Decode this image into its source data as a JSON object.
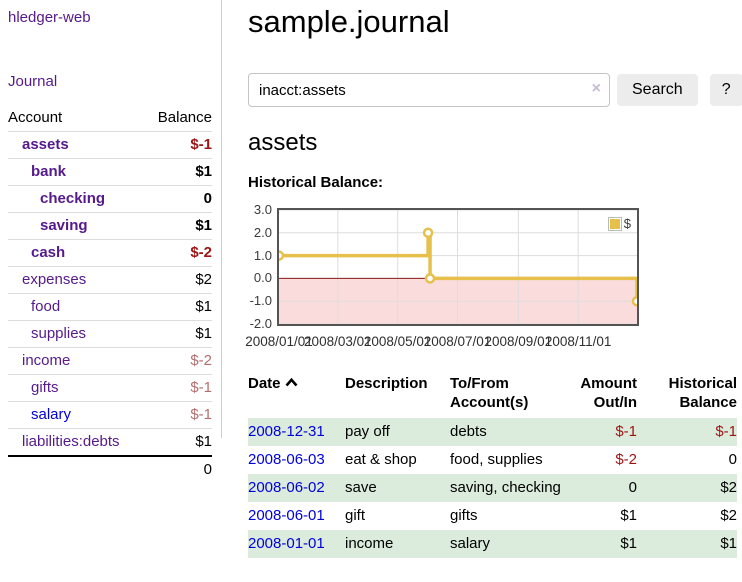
{
  "app": {
    "title": "hledger-web",
    "journal_nav": "Journal"
  },
  "sidebar": {
    "columns": {
      "account": "Account",
      "balance": "Balance"
    },
    "accounts": [
      {
        "name": "assets",
        "balance": "$-1"
      },
      {
        "name": "bank",
        "balance": "$1"
      },
      {
        "name": "checking",
        "balance": "0"
      },
      {
        "name": "saving",
        "balance": "$1"
      },
      {
        "name": "cash",
        "balance": "$-2"
      },
      {
        "name": "expenses",
        "balance": "$2"
      },
      {
        "name": "food",
        "balance": "$1"
      },
      {
        "name": "supplies",
        "balance": "$1"
      },
      {
        "name": "income",
        "balance": "$-2"
      },
      {
        "name": "gifts",
        "balance": "$-1"
      },
      {
        "name": "salary",
        "balance": "$-1"
      },
      {
        "name": "liabilities:debts",
        "balance": "$1"
      }
    ],
    "total": "0"
  },
  "header": {
    "title": "sample.journal"
  },
  "search": {
    "value": "inacct:assets",
    "clear_icon": "×",
    "button_label": "Search",
    "help_label": "?"
  },
  "account_page": {
    "title": "assets",
    "chart_heading": "Historical Balance:"
  },
  "chart_data": {
    "type": "line",
    "title": "Historical Balance",
    "step": true,
    "series": [
      {
        "name": "$",
        "points": [
          {
            "date": "2008-01-01",
            "value": 1
          },
          {
            "date": "2008-06-01",
            "value": 2
          },
          {
            "date": "2008-06-03",
            "value": 0
          },
          {
            "date": "2008-12-31",
            "value": -1
          }
        ]
      }
    ],
    "xmin": "2008-01-01",
    "xmax": "2008-12-31",
    "ylim": [
      -2,
      3
    ],
    "y_ticks": [
      "3.0",
      "2.0",
      "1.0",
      "0.0",
      "-1.0",
      "-2.0"
    ],
    "x_ticks": [
      "2008/01/01",
      "2008/03/01",
      "2008/05/01",
      "2008/07/01",
      "2008/09/01",
      "2008/11/01"
    ],
    "grid": true,
    "legend_position": "top-right",
    "legend_label": "$",
    "colors": {
      "line": "#e6c04a",
      "marker_fill": "#ffffff",
      "negative_fill": "#fbdcdc",
      "zero_line": "#8b1a1a",
      "grid_line": "#dddddd",
      "border": "#545454"
    }
  },
  "register": {
    "columns": [
      "Date",
      "Description",
      "To/From Account(s)",
      "Amount Out/In",
      "Historical Balance"
    ],
    "rows": [
      {
        "date": "2008-12-31",
        "description": "pay off",
        "accounts": "debts",
        "amount": "$-1",
        "balance": "$-1"
      },
      {
        "date": "2008-06-03",
        "description": "eat & shop",
        "accounts": "food, supplies",
        "amount": "$-2",
        "balance": "0"
      },
      {
        "date": "2008-06-02",
        "description": "save",
        "accounts": "saving, checking",
        "amount": "0",
        "balance": "$2"
      },
      {
        "date": "2008-06-01",
        "description": "gift",
        "accounts": "gifts",
        "amount": "$1",
        "balance": "$2"
      },
      {
        "date": "2008-01-01",
        "description": "income",
        "accounts": "salary",
        "amount": "$1",
        "balance": "$1"
      }
    ]
  }
}
